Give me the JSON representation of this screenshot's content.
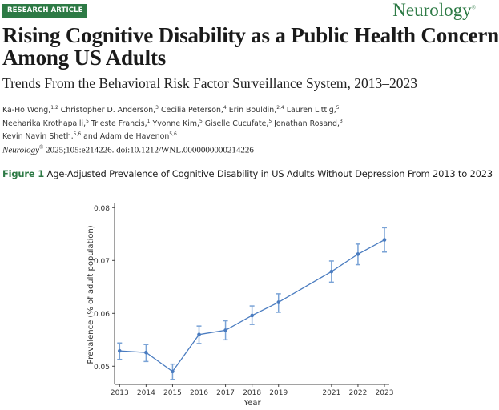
{
  "header": {
    "badge": "RESEARCH ARTICLE",
    "journal_logo": "Neurology",
    "journal_mark": "®"
  },
  "article": {
    "title_line1": "Rising Cognitive Disability as a Public Health Concern",
    "title_line2": "Among US Adults",
    "subtitle": "Trends From the Behavioral Risk Factor Surveillance System, 2013–2023",
    "authors": [
      [
        {
          "name": "Ka-Ho Wong,",
          "sup": "1,2"
        },
        {
          "name": " Christopher D. Anderson,",
          "sup": "3"
        },
        {
          "name": " Cecilia Peterson,",
          "sup": "4"
        },
        {
          "name": " Erin Bouldin,",
          "sup": "2,4"
        },
        {
          "name": " Lauren Littig,",
          "sup": "5"
        }
      ],
      [
        {
          "name": "Neeharika Krothapalli,",
          "sup": "5"
        },
        {
          "name": " Trieste Francis,",
          "sup": "1"
        },
        {
          "name": " Yvonne Kim,",
          "sup": "5"
        },
        {
          "name": " Giselle Cucufate,",
          "sup": "5"
        },
        {
          "name": " Jonathan Rosand,",
          "sup": "3"
        }
      ],
      [
        {
          "name": "Kevin Navin Sheth,",
          "sup": "5,6"
        },
        {
          "name": " and Adam de Havenon",
          "sup": "5,6"
        }
      ]
    ],
    "citation_journal": "Neurology",
    "citation_mark": "®",
    "citation_rest": " 2025;105:e214226. doi:10.1212/WNL.0000000000214226",
    "figure_label": "Figure 1",
    "figure_caption": " Age-Adjusted Prevalence of Cognitive Disability in US Adults Without Depression From 2013 to 2023"
  },
  "chart_data": {
    "type": "line",
    "title": "",
    "xlabel": "Year",
    "ylabel": "Prevalence (% of adult population)",
    "x": [
      2013,
      2014,
      2015,
      2016,
      2017,
      2018,
      2019,
      2021,
      2022,
      2023
    ],
    "series": [
      {
        "values": [
          0.0529,
          0.0526,
          0.049,
          0.056,
          0.0568,
          0.0596,
          0.0621,
          0.0679,
          0.0712,
          0.0739
        ],
        "ci_upper": [
          0.0544,
          0.0541,
          0.0504,
          0.0576,
          0.0586,
          0.0614,
          0.0637,
          0.0699,
          0.0731,
          0.0762
        ],
        "ci_lower": [
          0.0513,
          0.0509,
          0.0475,
          0.0543,
          0.055,
          0.0579,
          0.0602,
          0.0659,
          0.0692,
          0.0716
        ]
      }
    ],
    "xticks": [
      "2013",
      "2014",
      "2015",
      "2016",
      "2017",
      "2018",
      "2019",
      "2021",
      "2022",
      "2023"
    ],
    "yticks": [
      "0.05",
      "0.06",
      "0.07",
      "0.08"
    ],
    "ylim": [
      0.0467,
      0.0811
    ],
    "xlim": [
      2012.8,
      2023.2
    ],
    "grid": false,
    "line_color": "#4a7cc0",
    "errorbar_color": "#7aa3d6"
  },
  "colors": {
    "brand": "#2d7a45"
  }
}
